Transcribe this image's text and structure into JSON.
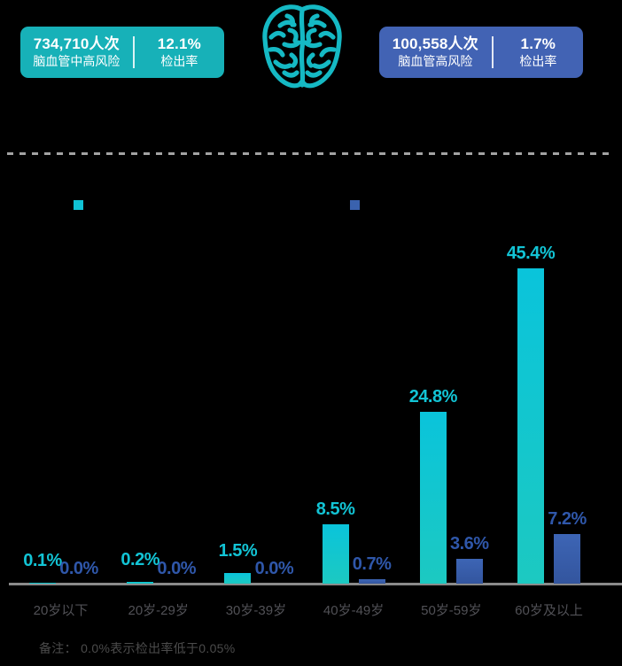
{
  "colors": {
    "card_mid_high": "#17b1b8",
    "card_high": "#4263b4",
    "axis": "#8a8a8a",
    "dash_line": "#a2a2a2",
    "category_text": "#515156",
    "note_text": "#4b4b4b",
    "brain_icon": "#15b9c4"
  },
  "summary_cards": [
    {
      "count": "734,710人次",
      "label": "脑血管中高风险",
      "rate": "12.1%",
      "rate_label": "检出率",
      "color": "#17b1b8"
    },
    {
      "count": "100,558人次",
      "label": "脑血管高风险",
      "rate": "1.7%",
      "rate_label": "检出率",
      "color": "#4263b4"
    }
  ],
  "legend": [
    {
      "id": "mid_high_risk",
      "color": "#10c3d6"
    },
    {
      "id": "high_risk",
      "color": "#3a62ae"
    }
  ],
  "chart_data": {
    "type": "bar",
    "categories": [
      "20岁以下",
      "20岁-29岁",
      "30岁-39岁",
      "40岁-49岁",
      "50岁-59岁",
      "60岁及以上"
    ],
    "series": [
      {
        "name": "mid_high_risk",
        "values": [
          0.1,
          0.2,
          1.5,
          8.5,
          24.8,
          45.4
        ],
        "labels": [
          "0.1%",
          "0.2%",
          "1.5%",
          "8.5%",
          "24.8%",
          "45.4%"
        ],
        "color_top": "#0ac4db",
        "color_bottom": "#1cc9c1",
        "label_color": "#12c4d5"
      },
      {
        "name": "high_risk",
        "values": [
          0.0,
          0.0,
          0.0,
          0.7,
          3.6,
          7.2
        ],
        "labels": [
          "0.0%",
          "0.0%",
          "0.0%",
          "0.7%",
          "3.6%",
          "7.2%"
        ],
        "color_top": "#3d65b5",
        "color_bottom": "#33559e",
        "label_color": "#2f57aa"
      }
    ],
    "unit": "%",
    "ylim": [
      0,
      50
    ],
    "grid": false,
    "legend_position": "top"
  },
  "note": {
    "text": "备注：  0.0%表示检出率低于0.05%"
  }
}
